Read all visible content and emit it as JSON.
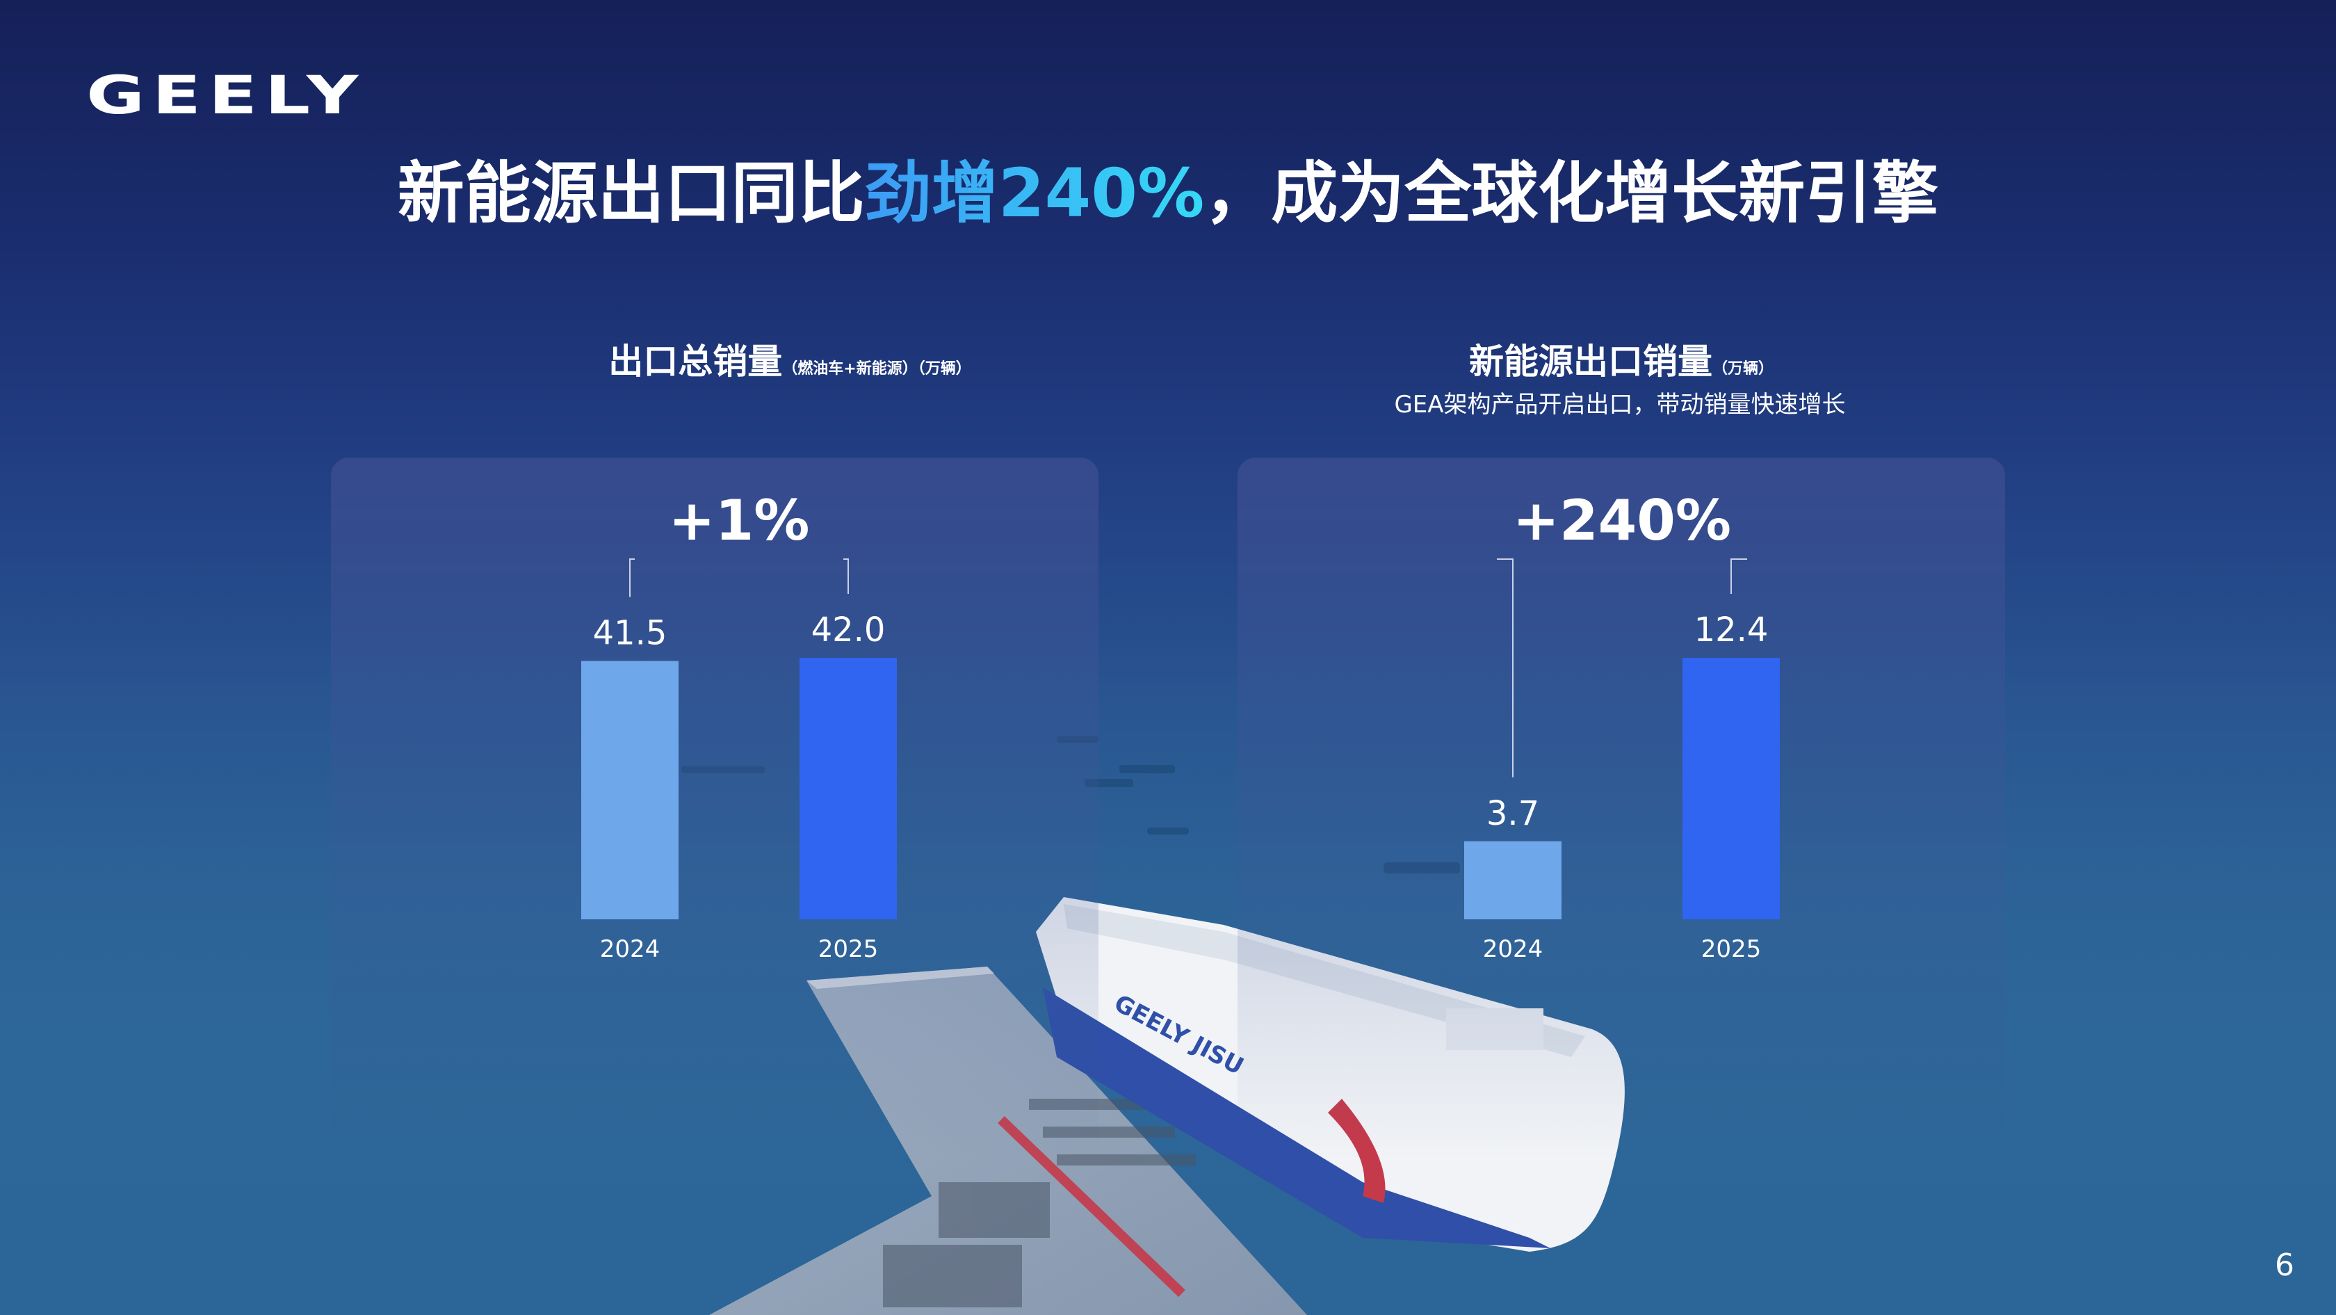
{
  "brand": {
    "logo_text": "GEELY"
  },
  "headline": {
    "pre": "新能源出口同比",
    "highlight": "劲增240%",
    "post": "，成为全球化增长新引擎"
  },
  "page_number": "6",
  "colors": {
    "bar_2024": "#6ea8eb",
    "bar_2025": "#2f65f0",
    "highlight_start": "#3c9cf5",
    "highlight_end": "#35d9f5"
  },
  "chart_data": [
    {
      "type": "bar",
      "title": "出口总销量",
      "title_suffix": "（燃油车+新能源）（万辆）",
      "subtitle": "",
      "categories": [
        "2024",
        "2025"
      ],
      "values": [
        41.5,
        42.0
      ],
      "value_labels": [
        "41.5",
        "42.0"
      ],
      "growth_label": "+1%",
      "ylim": [
        0,
        42.0
      ]
    },
    {
      "type": "bar",
      "title": "新能源出口销量",
      "title_suffix": "（万辆）",
      "subtitle": "GEA架构产品开启出口，带动销量快速增长",
      "categories": [
        "2024",
        "2025"
      ],
      "values": [
        3.7,
        12.4
      ],
      "value_labels": [
        "3.7",
        "12.4"
      ],
      "growth_label": "+240%",
      "ylim": [
        0,
        12.4
      ]
    }
  ]
}
